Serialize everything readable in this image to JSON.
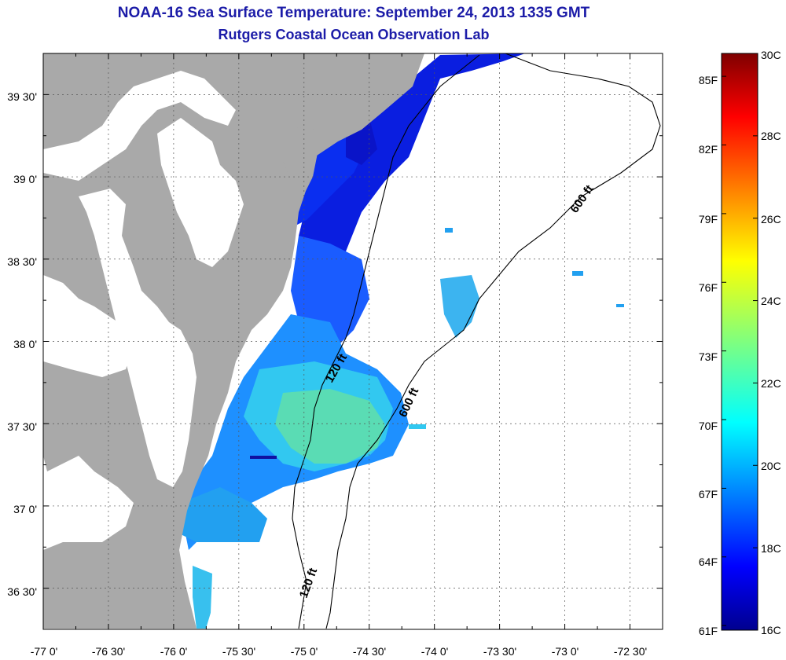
{
  "header": {
    "title": "NOAA-16 Sea Surface Temperature:  September 24, 2013 1335 GMT",
    "subtitle": "Rutgers Coastal Ocean Observation Lab"
  },
  "map": {
    "lon_range": [
      -77.0,
      -72.25
    ],
    "lat_range": [
      36.25,
      39.75
    ],
    "lon_ticks": [
      "-77 0'",
      "-76 30'",
      "-76 0'",
      "-75 30'",
      "-75 0'",
      "-74 30'",
      "-74 0'",
      "-73 30'",
      "-73 0'",
      "-72 30'"
    ],
    "lat_ticks": [
      "39 30'",
      "39 0'",
      "38 30'",
      "38 0'",
      "37 30'",
      "37 0'",
      "36 30'"
    ],
    "grid": true,
    "contour_labels": [
      "600 ft",
      "120 ft",
      "600 ft",
      "120 ft"
    ],
    "land_color": "#a9a9a9",
    "cloud_color": "#ffffff"
  },
  "colorbar": {
    "celsius_labels": [
      "30C",
      "28C",
      "26C",
      "24C",
      "22C",
      "20C",
      "18C",
      "16C"
    ],
    "fahrenheit_labels": [
      "85F",
      "82F",
      "79F",
      "76F",
      "73F",
      "70F",
      "67F",
      "64F",
      "61F"
    ],
    "range_c": [
      16,
      30
    ],
    "colormap": "jet"
  }
}
